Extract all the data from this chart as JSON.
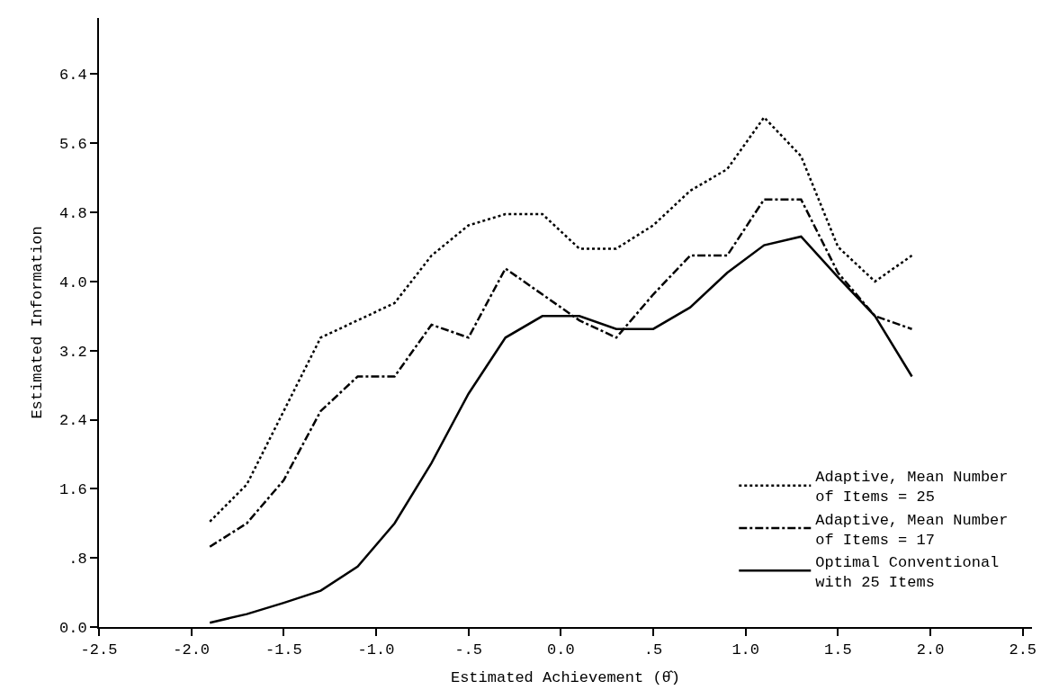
{
  "chart_data": {
    "type": "line",
    "xlabel": "Estimated Achievement (θ̂)",
    "ylabel": "Estimated Information",
    "x": [
      -1.9,
      -1.7,
      -1.5,
      -1.3,
      -1.1,
      -0.9,
      -0.7,
      -0.5,
      -0.3,
      -0.1,
      0.1,
      0.3,
      0.5,
      0.7,
      0.9,
      1.1,
      1.3,
      1.5,
      1.7,
      1.9
    ],
    "series": [
      {
        "name": "Adaptive, Mean Number\nof Items = 25",
        "color": "#000000",
        "line_style": "dotted",
        "values": [
          1.22,
          1.65,
          2.5,
          3.35,
          3.55,
          3.75,
          4.3,
          4.65,
          4.78,
          4.78,
          4.38,
          4.38,
          4.65,
          5.05,
          5.3,
          5.9,
          5.45,
          4.4,
          4.0,
          4.3
        ]
      },
      {
        "name": "Adaptive, Mean Number\nof Items = 17",
        "color": "#000000",
        "line_style": "dashdot",
        "values": [
          0.93,
          1.2,
          1.7,
          2.5,
          2.9,
          2.9,
          3.5,
          3.35,
          4.15,
          3.85,
          3.55,
          3.35,
          3.85,
          4.3,
          4.3,
          4.95,
          4.95,
          4.1,
          3.6,
          3.45
        ]
      },
      {
        "name": "Optimal Conventional\nwith 25 Items",
        "color": "#000000",
        "line_style": "solid",
        "values": [
          0.05,
          0.15,
          0.28,
          0.42,
          0.7,
          1.2,
          1.9,
          2.7,
          3.35,
          3.6,
          3.6,
          3.45,
          3.45,
          3.7,
          4.1,
          4.42,
          4.52,
          4.05,
          3.6,
          2.9
        ]
      }
    ],
    "xlim": [
      -2.5,
      2.55
    ],
    "ylim": [
      0,
      7.05
    ],
    "xticks": [
      {
        "value": -2.5,
        "label": "-2.5"
      },
      {
        "value": -2.0,
        "label": "-2.0"
      },
      {
        "value": -1.5,
        "label": "-1.5"
      },
      {
        "value": -1.0,
        "label": "-1.0"
      },
      {
        "value": -0.5,
        "label": "-.5"
      },
      {
        "value": 0,
        "label": "0.0"
      },
      {
        "value": 0.5,
        "label": ".5"
      },
      {
        "value": 1.0,
        "label": "1.0"
      },
      {
        "value": 1.5,
        "label": "1.5"
      },
      {
        "value": 2.0,
        "label": "2.0"
      },
      {
        "value": 2.5,
        "label": "2.5"
      }
    ],
    "yticks": [
      {
        "value": 0,
        "label": "0.0"
      },
      {
        "value": 0.8,
        "label": ".8"
      },
      {
        "value": 1.6,
        "label": "1.6"
      },
      {
        "value": 2.4,
        "label": "2.4"
      },
      {
        "value": 3.2,
        "label": "3.2"
      },
      {
        "value": 4.0,
        "label": "4.0"
      },
      {
        "value": 4.8,
        "label": "4.8"
      },
      {
        "value": 5.6,
        "label": "5.6"
      },
      {
        "value": 6.4,
        "label": "6.4"
      }
    ],
    "legend": "bottom right",
    "marker": "none"
  }
}
